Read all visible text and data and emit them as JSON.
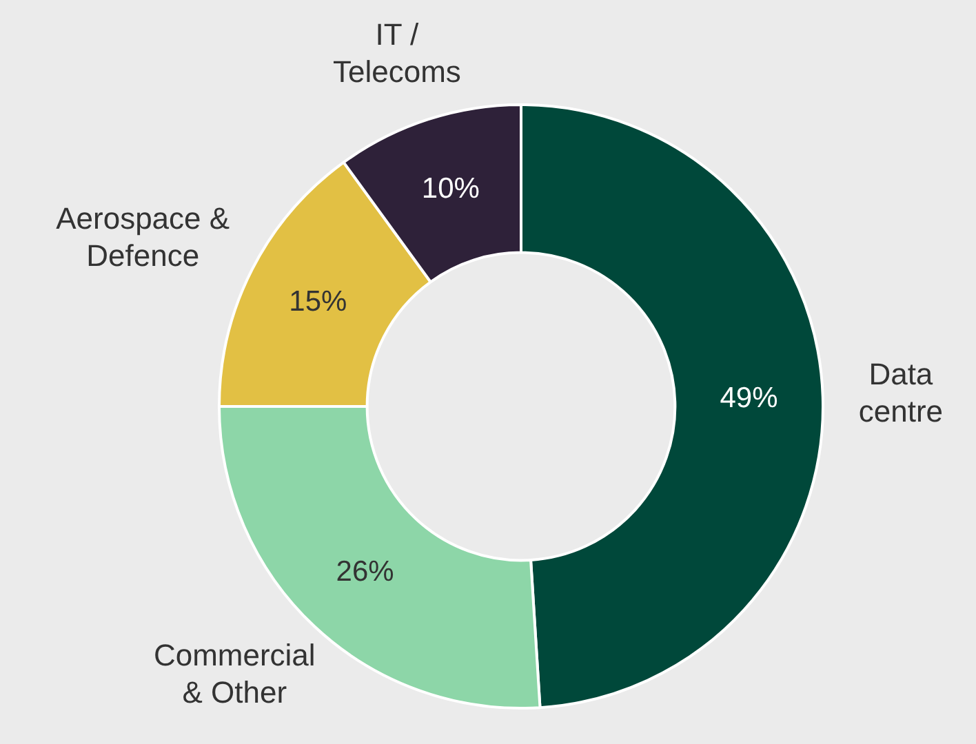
{
  "chart_data": {
    "type": "donut",
    "categories": [
      "Data\ncentre",
      "Commercial\n& Other",
      "Aerospace &\nDefence",
      "IT /\nTelecoms"
    ],
    "values": [
      49,
      26,
      15,
      10
    ],
    "colors": [
      "#00483a",
      "#8dd6a8",
      "#e2c044",
      "#2e2139"
    ],
    "value_labels": [
      "49%",
      "26%",
      "15%",
      "10%"
    ],
    "legend": false
  }
}
